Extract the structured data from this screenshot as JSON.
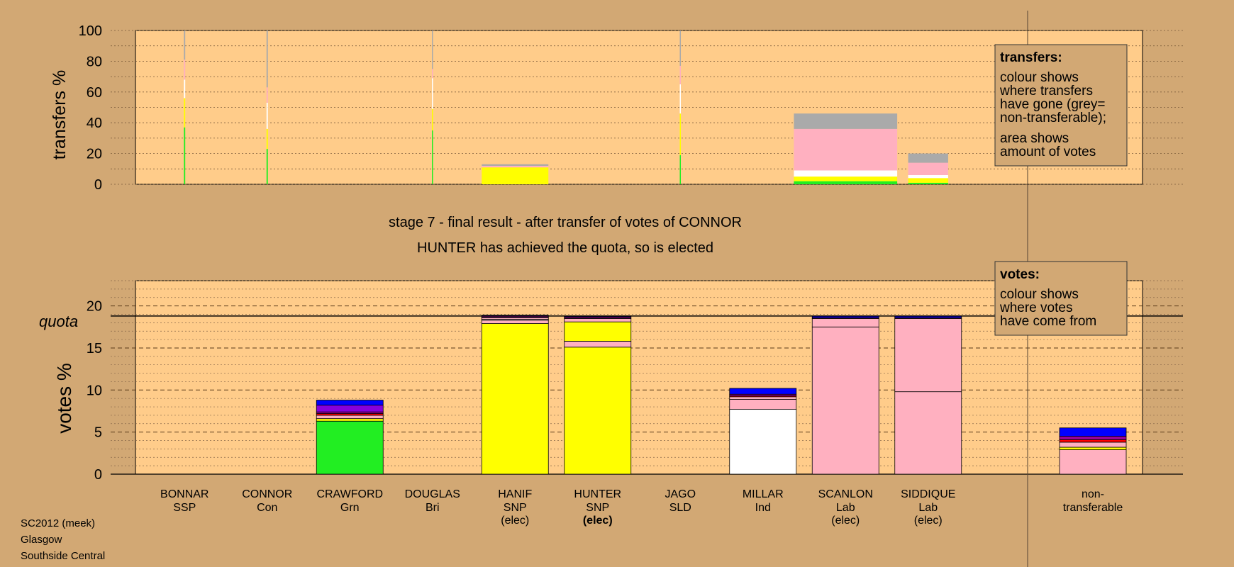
{
  "stage_title": "stage 7 - final result - after transfer of votes of CONNOR",
  "stage_subtitle": "HUNTER has achieved the quota, so is elected",
  "footer": {
    "line1": "SC2012 (meek)",
    "line2": "Glasgow",
    "line3": "Southside Central"
  },
  "legend_transfers": {
    "heading": "transfers:",
    "lines": [
      "colour shows",
      "where transfers",
      "have gone (grey=",
      "non-transferable);",
      "area shows",
      "amount of votes"
    ]
  },
  "legend_votes": {
    "heading": "votes:",
    "lines": [
      "colour shows",
      "where votes",
      "have come from"
    ]
  },
  "party_colors": {
    "SSP": "#ff0000",
    "Con": "#0000ff",
    "Grn": "#22ee22",
    "Bri": "#990099",
    "SNP": "#ffff00",
    "SLD": "#ff8800",
    "Ind": "#ffffff",
    "Lab": "#ffb0c0",
    "non-transferable": "#aaaaaa"
  },
  "chart_data": [
    {
      "type": "bar",
      "title": "",
      "ylabel": "transfers %",
      "ylim": [
        0,
        100
      ],
      "yticks": [
        0,
        20,
        40,
        60,
        80,
        100
      ],
      "grid": true,
      "legend": "right",
      "bars": [
        {
          "candidate": "BONNAR",
          "width_share": 0.02,
          "segments": [
            {
              "party": "Grn",
              "color": "#22ee22",
              "value": 37
            },
            {
              "party": "SNP",
              "color": "#ffff00",
              "value": 19
            },
            {
              "party": "Ind",
              "color": "#ffffff",
              "value": 12
            },
            {
              "party": "Lab",
              "color": "#ffb0c0",
              "value": 13
            },
            {
              "party": "non-transferable",
              "color": "#aaaaaa",
              "value": 19
            }
          ]
        },
        {
          "candidate": "CONNOR",
          "width_share": 0.02,
          "segments": [
            {
              "party": "Grn",
              "color": "#22ee22",
              "value": 23
            },
            {
              "party": "SNP",
              "color": "#ffff00",
              "value": 13
            },
            {
              "party": "Ind",
              "color": "#ffffff",
              "value": 17
            },
            {
              "party": "Lab",
              "color": "#ffb0c0",
              "value": 10
            },
            {
              "party": "non-transferable",
              "color": "#aaaaaa",
              "value": 37
            }
          ]
        },
        {
          "candidate": "DOUGLAS",
          "width_share": 0.005,
          "segments": [
            {
              "party": "Grn",
              "color": "#22ee22",
              "value": 35
            },
            {
              "party": "SNP",
              "color": "#ffff00",
              "value": 14
            },
            {
              "party": "Ind",
              "color": "#ffffff",
              "value": 20
            },
            {
              "party": "Lab",
              "color": "#ffb0c0",
              "value": 6
            },
            {
              "party": "non-transferable",
              "color": "#aaaaaa",
              "value": 25
            }
          ]
        },
        {
          "candidate": "HANIF",
          "width_share": 1,
          "segments": [
            {
              "party": "SNP",
              "color": "#ffff00",
              "value": 11
            },
            {
              "party": "Lab",
              "color": "#ffb0c0",
              "value": 1
            },
            {
              "party": "non-transferable",
              "color": "#aaaaaa",
              "value": 1
            }
          ]
        },
        {
          "candidate": "JAGO",
          "width_share": 0.005,
          "segments": [
            {
              "party": "Grn",
              "color": "#22ee22",
              "value": 19
            },
            {
              "party": "SNP",
              "color": "#ffff00",
              "value": 27
            },
            {
              "party": "Ind",
              "color": "#ffffff",
              "value": 19
            },
            {
              "party": "Lab",
              "color": "#ffb0c0",
              "value": 12
            },
            {
              "party": "non-transferable",
              "color": "#aaaaaa",
              "value": 23
            }
          ]
        },
        {
          "candidate": "SCANLON",
          "width_share": 1.55,
          "segments": [
            {
              "party": "Grn",
              "color": "#22ee22",
              "value": 2
            },
            {
              "party": "SNP",
              "color": "#ffff00",
              "value": 3
            },
            {
              "party": "Ind",
              "color": "#ffffff",
              "value": 4
            },
            {
              "party": "Lab",
              "color": "#ffb0c0",
              "value": 27
            },
            {
              "party": "non-transferable",
              "color": "#aaaaaa",
              "value": 10
            }
          ]
        },
        {
          "candidate": "SIDDIQUE",
          "width_share": 0.6,
          "segments": [
            {
              "party": "Grn",
              "color": "#22ee22",
              "value": 1
            },
            {
              "party": "SNP",
              "color": "#ffff00",
              "value": 3
            },
            {
              "party": "Ind",
              "color": "#ffffff",
              "value": 2
            },
            {
              "party": "Lab",
              "color": "#ffb0c0",
              "value": 8
            },
            {
              "party": "non-transferable",
              "color": "#aaaaaa",
              "value": 6
            }
          ]
        }
      ]
    },
    {
      "type": "bar",
      "title": "",
      "ylabel": "votes %",
      "ylim": [
        0,
        23
      ],
      "yticks": [
        0,
        5,
        10,
        15,
        20
      ],
      "quota": 18.8,
      "quota_label": "quota",
      "grid": true,
      "legend": "right",
      "candidates": [
        {
          "name": "BONNAR",
          "party": "SSP",
          "status": "",
          "segments": []
        },
        {
          "name": "CONNOR",
          "party": "Con",
          "status": "",
          "segments": []
        },
        {
          "name": "CRAWFORD",
          "party": "Grn",
          "status": "",
          "segments": [
            {
              "from": "Grn",
              "color": "#22ee22",
              "value": 6.3
            },
            {
              "from": "SNP",
              "color": "#ffff00",
              "value": 0.3
            },
            {
              "from": "Lab",
              "color": "#ffb0c0",
              "value": 0.4
            },
            {
              "from": "SSP",
              "color": "#ff0000",
              "value": 0.2
            },
            {
              "from": "Bri",
              "color": "#990099",
              "value": 0.2
            },
            {
              "from": "Bri",
              "color": "#8800dd",
              "value": 0.8
            },
            {
              "from": "Con",
              "color": "#0000ff",
              "value": 0.6
            }
          ]
        },
        {
          "name": "DOUGLAS",
          "party": "Bri",
          "status": "",
          "segments": []
        },
        {
          "name": "HANIF",
          "party": "SNP",
          "status": "(elec)",
          "segments": [
            {
              "from": "SNP",
              "color": "#ffff00",
              "value": 17.9
            },
            {
              "from": "Lab",
              "color": "#ffb0c0",
              "value": 0.4
            },
            {
              "from": "Ind",
              "color": "#ffffff",
              "value": 0.1
            },
            {
              "from": "Lab",
              "color": "#ffb0c0",
              "value": 0.2
            },
            {
              "from": "SSP",
              "color": "#ff0000",
              "value": 0.05
            },
            {
              "from": "Bri",
              "color": "#990099",
              "value": 0.15
            },
            {
              "from": "Con",
              "color": "#0000ff",
              "value": 0.1
            }
          ]
        },
        {
          "name": "HUNTER",
          "party": "SNP",
          "status": "(elec)",
          "status_bold": true,
          "segments": [
            {
              "from": "SNP",
              "color": "#ffff00",
              "value": 15.1
            },
            {
              "from": "Lab",
              "color": "#ffb0c0",
              "value": 0.7
            },
            {
              "from": "SNP",
              "color": "#ffff00",
              "value": 2.3
            },
            {
              "from": "Lab",
              "color": "#ffb0c0",
              "value": 0.4
            },
            {
              "from": "SSP",
              "color": "#ff0000",
              "value": 0.05
            },
            {
              "from": "Bri",
              "color": "#990099",
              "value": 0.15
            },
            {
              "from": "Con",
              "color": "#0000ff",
              "value": 0.1
            }
          ]
        },
        {
          "name": "JAGO",
          "party": "SLD",
          "status": "",
          "segments": []
        },
        {
          "name": "MILLAR",
          "party": "Ind",
          "status": "",
          "segments": [
            {
              "from": "Ind",
              "color": "#ffffff",
              "value": 7.7
            },
            {
              "from": "Lab",
              "color": "#ffb0c0",
              "value": 1.2
            },
            {
              "from": "Lab",
              "color": "#ffb0c0",
              "value": 0.3
            },
            {
              "from": "SSP",
              "color": "#ff0000",
              "value": 0.1
            },
            {
              "from": "Bri",
              "color": "#990099",
              "value": 0.2
            },
            {
              "from": "Con",
              "color": "#0000ff",
              "value": 0.7
            }
          ]
        },
        {
          "name": "SCANLON",
          "party": "Lab",
          "status": "(elec)",
          "segments": [
            {
              "from": "Lab",
              "color": "#ffb0c0",
              "value": 17.5
            },
            {
              "from": "Lab",
              "color": "#ffb0c0",
              "value": 1.0
            },
            {
              "from": "Bri",
              "color": "#990099",
              "value": 0.1
            },
            {
              "from": "Con",
              "color": "#0000ff",
              "value": 0.2
            }
          ]
        },
        {
          "name": "SIDDIQUE",
          "party": "Lab",
          "status": "(elec)",
          "segments": [
            {
              "from": "Lab",
              "color": "#ffb0c0",
              "value": 9.8
            },
            {
              "from": "Lab",
              "color": "#ffb0c0",
              "value": 8.7
            },
            {
              "from": "Bri",
              "color": "#990099",
              "value": 0.1
            },
            {
              "from": "Con",
              "color": "#0000ff",
              "value": 0.2
            }
          ]
        }
      ],
      "nontransferable": {
        "label_line1": "non-",
        "label_line2": "transferable",
        "segments": [
          {
            "from": "Ind",
            "color": "#ffb0c0",
            "value": 2.9
          },
          {
            "from": "SNP",
            "color": "#ffff00",
            "value": 0.3
          },
          {
            "from": "Lab",
            "color": "#ffb0c0",
            "value": 0.6
          },
          {
            "from": "SSP",
            "color": "#ff0000",
            "value": 0.3
          },
          {
            "from": "Bri",
            "color": "#990099",
            "value": 0.4
          },
          {
            "from": "Con",
            "color": "#0000ff",
            "value": 1.0
          }
        ]
      }
    }
  ]
}
